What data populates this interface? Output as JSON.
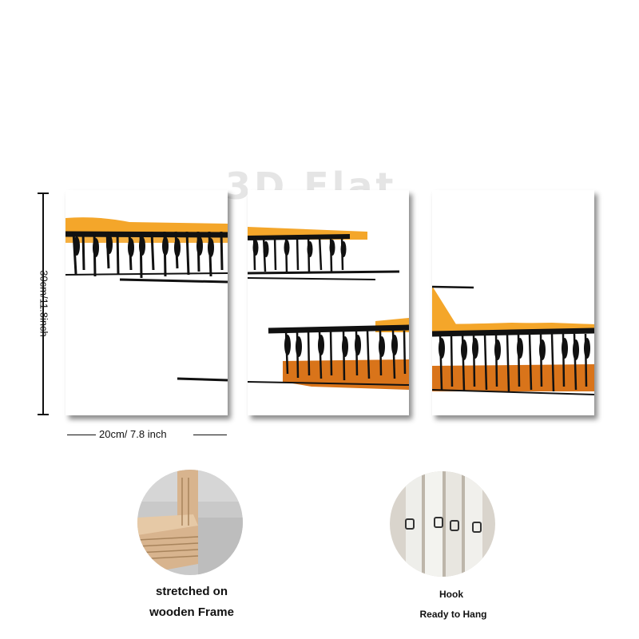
{
  "watermark": "3D Flat",
  "dimensions": {
    "height_label": "30cm/11.8inch",
    "width_label": "20cm/ 7.8 inch"
  },
  "panels": [
    {
      "name": "left-canvas-panel",
      "art": "piano-keys-abstract"
    },
    {
      "name": "middle-canvas-panel",
      "art": "piano-keys-abstract"
    },
    {
      "name": "right-canvas-panel",
      "art": "piano-keys-abstract"
    }
  ],
  "colors": {
    "orange_light": "#f4a62a",
    "orange_dark": "#d9741a",
    "ink": "#111111",
    "wood": "#d8b48e"
  },
  "features": {
    "frame": {
      "line1": "stretched on",
      "line2": "wooden Frame"
    },
    "hook": {
      "line1": "Hook",
      "line2": "Ready to Hang"
    }
  }
}
